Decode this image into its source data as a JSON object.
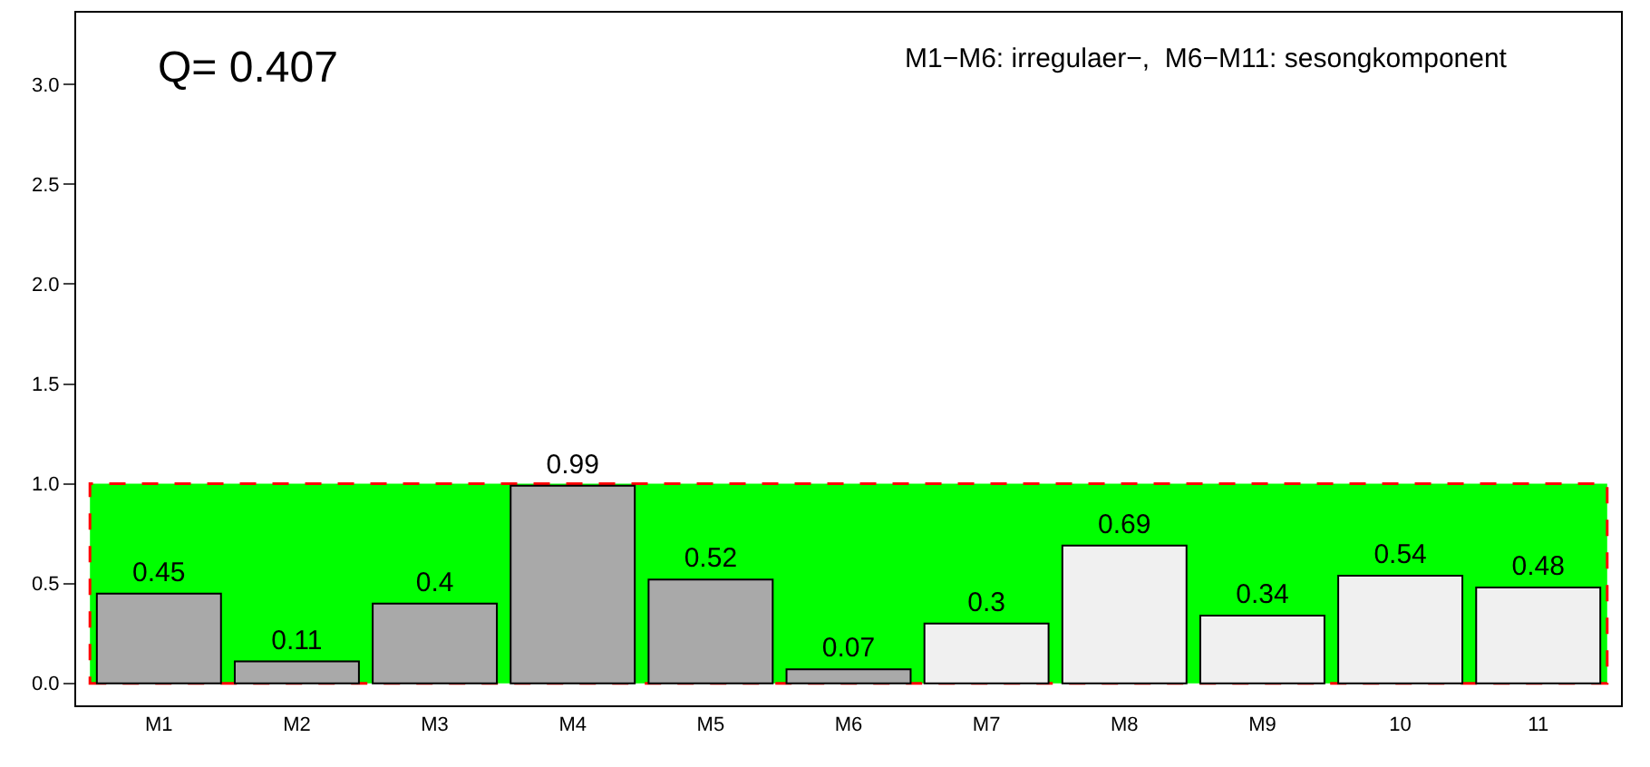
{
  "chart_data": {
    "type": "bar",
    "categories": [
      "M1",
      "M2",
      "M3",
      "M4",
      "M5",
      "M6",
      "M7",
      "M8",
      "M9",
      "10",
      "11"
    ],
    "values": [
      0.45,
      0.11,
      0.4,
      0.99,
      0.52,
      0.07,
      0.3,
      0.69,
      0.34,
      0.54,
      0.48
    ],
    "colors": [
      "#a9a9a9",
      "#a9a9a9",
      "#a9a9a9",
      "#a9a9a9",
      "#a9a9a9",
      "#a9a9a9",
      "#f0f0f0",
      "#f0f0f0",
      "#f0f0f0",
      "#f0f0f0",
      "#f0f0f0"
    ],
    "ylim": [
      -0.11,
      3.36
    ],
    "yticks": [
      {
        "value": 0,
        "label": "0.0"
      },
      {
        "value": 0.5,
        "label": "0.5"
      },
      {
        "value": 1,
        "label": "1.0"
      },
      {
        "value": 1.5,
        "label": "1.5"
      },
      {
        "value": 2,
        "label": "2.0"
      },
      {
        "value": 2.5,
        "label": "2.5"
      },
      {
        "value": 3,
        "label": "3.0"
      }
    ],
    "bands": [
      {
        "axis": "y",
        "from": 0,
        "to": 1,
        "color": "#00ff00"
      }
    ],
    "data_labels": true,
    "annotations": [
      "Q= 0.407",
      "M1−M6: irregulaer−,  M6−M11: sesongkomponent"
    ]
  }
}
